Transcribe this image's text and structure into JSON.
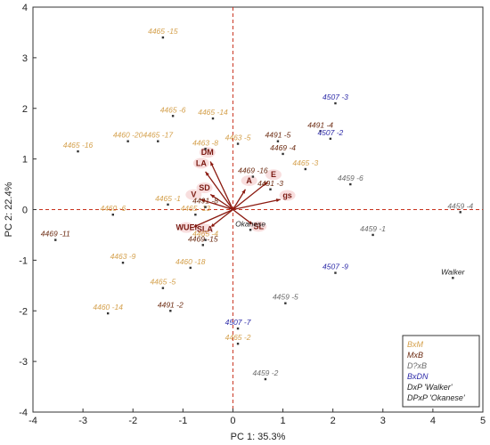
{
  "chart_data": {
    "type": "scatter",
    "title": "",
    "xlabel": "PC 1: 35.3%",
    "ylabel": "PC 2: 22.4%",
    "xlim": [
      -4,
      5
    ],
    "ylim": [
      -4,
      4
    ],
    "xticks": [
      -4,
      -3,
      -2,
      -1,
      0,
      1,
      2,
      3,
      4,
      5
    ],
    "yticks": [
      -4,
      -3,
      -2,
      -1,
      0,
      1,
      2,
      3,
      4
    ],
    "grid": false,
    "legend_position": "bottom-right",
    "reference_lines": {
      "x": 0,
      "y": 0,
      "style": "dashed",
      "color": "#c8321e"
    },
    "groups": [
      {
        "name": "BxM",
        "color": "#d4a04c"
      },
      {
        "name": "MxB",
        "color": "#6b2a10"
      },
      {
        "name": "D?xB",
        "color": "#6a6a6a"
      },
      {
        "name": "BxDN",
        "color": "#2c2aa8"
      },
      {
        "name": "DxP 'Walker'",
        "color": "#222222"
      },
      {
        "name": "DPxP 'Okanese'",
        "color": "#222222"
      }
    ],
    "points": [
      {
        "label": "4465 -15",
        "group": "BxM",
        "x": -1.4,
        "y": 3.4
      },
      {
        "label": "4465 -6",
        "group": "BxM",
        "x": -1.2,
        "y": 1.85
      },
      {
        "label": "4465 -14",
        "group": "BxM",
        "x": -0.4,
        "y": 1.8
      },
      {
        "label": "4460 -20",
        "group": "BxM",
        "x": -2.1,
        "y": 1.35
      },
      {
        "label": "4465 -17",
        "group": "BxM",
        "x": -1.5,
        "y": 1.35
      },
      {
        "label": "4465 -16",
        "group": "BxM",
        "x": -3.1,
        "y": 1.15
      },
      {
        "label": "4463 -8",
        "group": "BxM",
        "x": -0.55,
        "y": 1.2
      },
      {
        "label": "4463 -5",
        "group": "BxM",
        "x": 0.1,
        "y": 1.3
      },
      {
        "label": "4465 -1",
        "group": "BxM",
        "x": -1.3,
        "y": 0.1
      },
      {
        "label": "4465 -13",
        "group": "BxM",
        "x": -0.75,
        "y": -0.1
      },
      {
        "label": "4460 -6",
        "group": "BxM",
        "x": -2.4,
        "y": -0.1
      },
      {
        "label": "4465 -4",
        "group": "BxM",
        "x": -0.55,
        "y": -0.6
      },
      {
        "label": "4460 -18",
        "group": "BxM",
        "x": -0.85,
        "y": -1.15
      },
      {
        "label": "4463 -9",
        "group": "BxM",
        "x": -2.2,
        "y": -1.05
      },
      {
        "label": "4465 -5",
        "group": "BxM",
        "x": -1.4,
        "y": -1.55
      },
      {
        "label": "4460 -14",
        "group": "BxM",
        "x": -2.5,
        "y": -2.05
      },
      {
        "label": "4465 -3",
        "group": "BxM",
        "x": 1.45,
        "y": 0.8
      },
      {
        "label": "4465 -2",
        "group": "BxM",
        "x": 0.1,
        "y": -2.65
      },
      {
        "label": "4491 -4",
        "group": "MxB",
        "x": 1.75,
        "y": 1.55
      },
      {
        "label": "4491 -5",
        "group": "MxB",
        "x": 0.9,
        "y": 1.35
      },
      {
        "label": "4469 -4",
        "group": "MxB",
        "x": 1.0,
        "y": 1.1
      },
      {
        "label": "4469 -16",
        "group": "MxB",
        "x": 0.4,
        "y": 0.65
      },
      {
        "label": "4491 -3",
        "group": "MxB",
        "x": 0.75,
        "y": 0.4
      },
      {
        "label": "4491 -8",
        "group": "MxB",
        "x": -0.55,
        "y": 0.05
      },
      {
        "label": "4469 -15",
        "group": "MxB",
        "x": -0.6,
        "y": -0.7
      },
      {
        "label": "4469 -11",
        "group": "MxB",
        "x": -3.55,
        "y": -0.6
      },
      {
        "label": "4491 -2",
        "group": "MxB",
        "x": -1.25,
        "y": -2.0
      },
      {
        "label": "4459 -6",
        "group": "D?xB",
        "x": 2.35,
        "y": 0.5
      },
      {
        "label": "4459 -1",
        "group": "D?xB",
        "x": 2.8,
        "y": -0.5
      },
      {
        "label": "4459 -4",
        "group": "D?xB",
        "x": 4.55,
        "y": -0.05
      },
      {
        "label": "4459 -5",
        "group": "D?xB",
        "x": 1.05,
        "y": -1.85
      },
      {
        "label": "4459 -2",
        "group": "D?xB",
        "x": 0.65,
        "y": -3.35
      },
      {
        "label": "4507 -3",
        "group": "BxDN",
        "x": 2.05,
        "y": 2.1
      },
      {
        "label": "4507 -2",
        "group": "BxDN",
        "x": 1.95,
        "y": 1.4
      },
      {
        "label": "4507 -9",
        "group": "BxDN",
        "x": 2.05,
        "y": -1.25
      },
      {
        "label": "4507 -7",
        "group": "BxDN",
        "x": 0.1,
        "y": -2.35
      },
      {
        "label": "Walker",
        "group": "DxP 'Walker'",
        "x": 4.4,
        "y": -1.35
      },
      {
        "label": "Okanese",
        "group": "DPxP 'Okanese'",
        "x": 0.35,
        "y": -0.4
      }
    ],
    "loadings": [
      {
        "label": "DM",
        "x": -0.45,
        "y": 0.95
      },
      {
        "label": "LA",
        "x": -0.55,
        "y": 0.75
      },
      {
        "label": "SD",
        "x": -0.45,
        "y": 0.3
      },
      {
        "label": "V",
        "x": -0.65,
        "y": 0.2
      },
      {
        "label": "A",
        "x": 0.25,
        "y": 0.4
      },
      {
        "label": "E",
        "x": 0.7,
        "y": 0.55
      },
      {
        "label": "gs",
        "x": 0.95,
        "y": 0.2
      },
      {
        "label": "WUEi",
        "x": -0.8,
        "y": -0.35
      },
      {
        "label": "SLA",
        "x": -0.45,
        "y": -0.35
      },
      {
        "label": "SL",
        "x": 0.4,
        "y": -0.3
      }
    ]
  }
}
